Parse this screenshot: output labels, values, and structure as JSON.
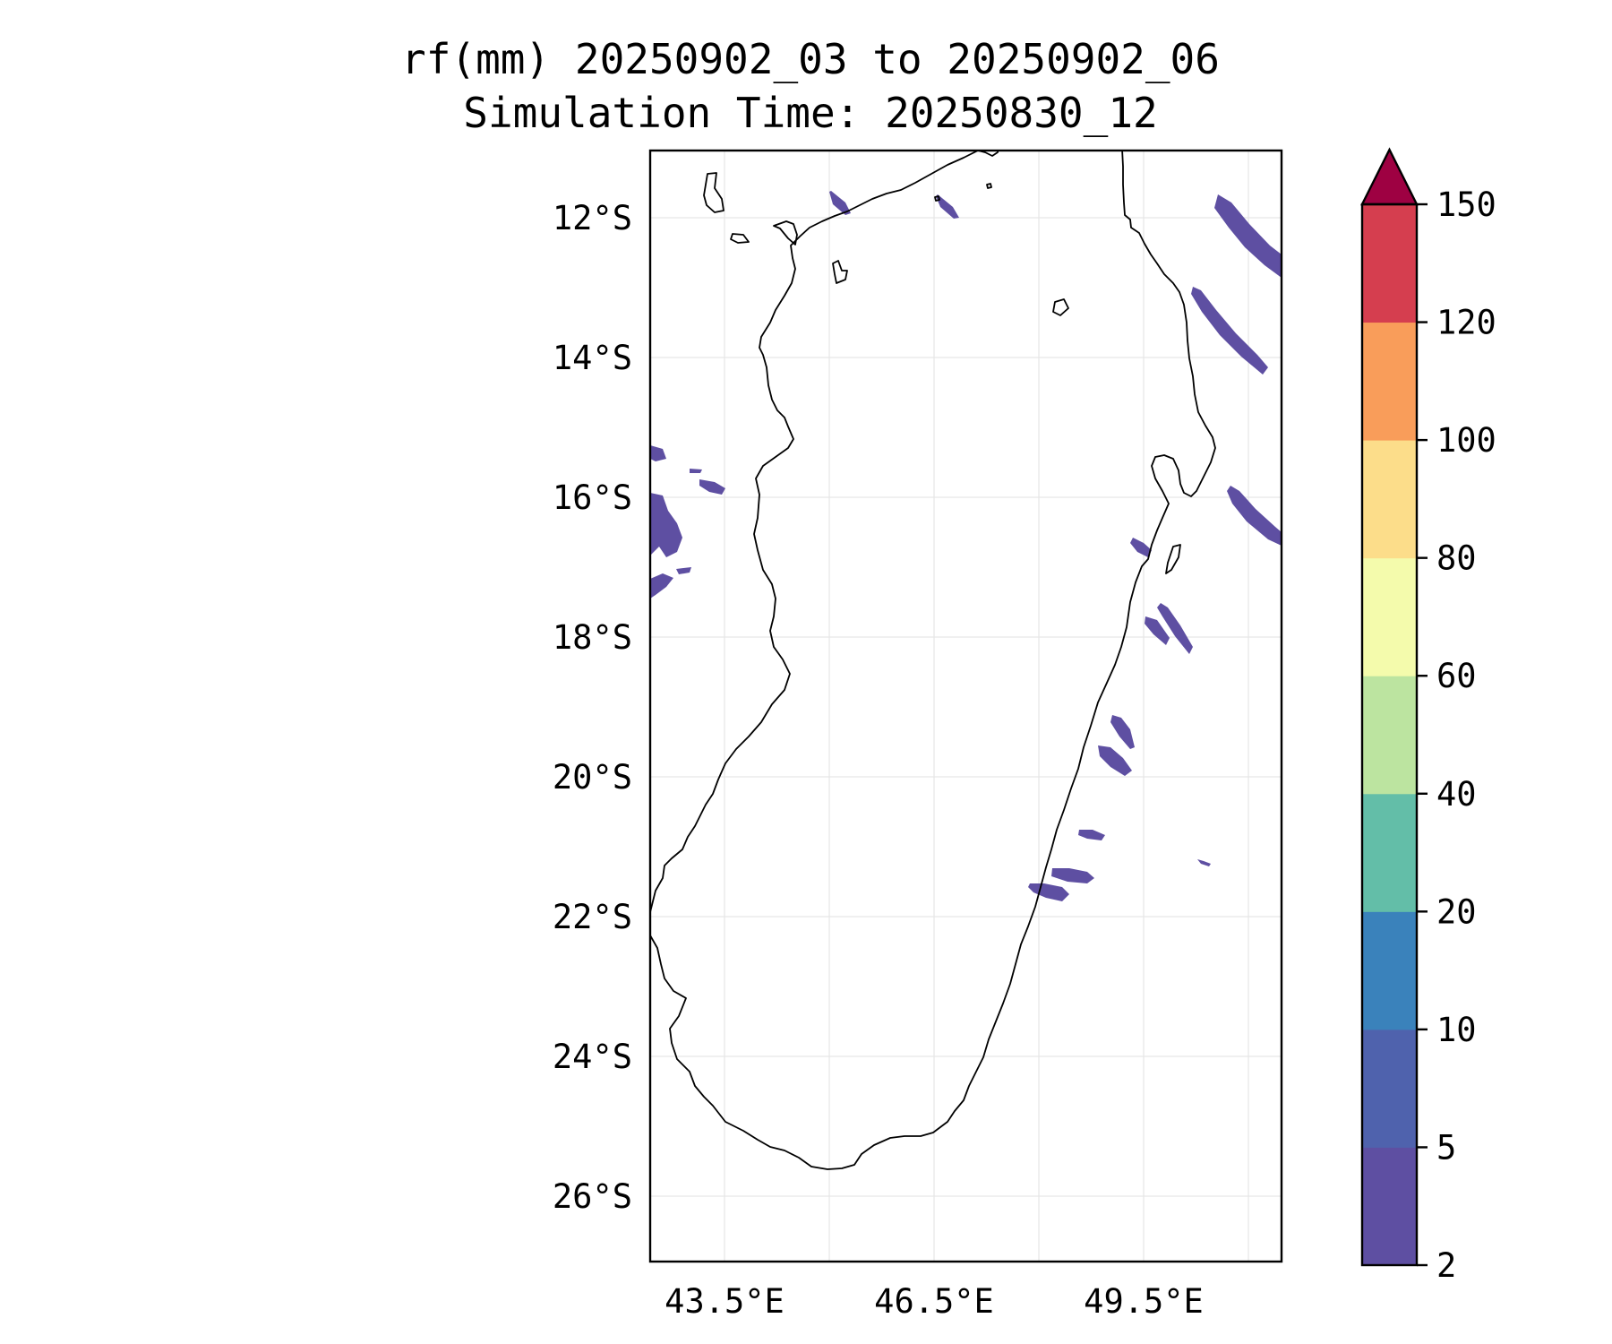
{
  "title": {
    "line1": "rf(mm) 20250902_03 to 20250902_06",
    "line2": "Simulation Time: 20250830_12"
  },
  "map": {
    "lat_ticks": [
      "12°S",
      "14°S",
      "16°S",
      "18°S",
      "20°S",
      "22°S",
      "24°S",
      "26°S"
    ],
    "lon_ticks": [
      "43.5°E",
      "46.5°E",
      "49.5°E"
    ],
    "lat_range": [
      -27.0,
      -11.1
    ],
    "lon_range": [
      42.45,
      51.45
    ],
    "grid": true,
    "coastline_color": "#000000",
    "rain_color": "#5e4fa2"
  },
  "colorbar": {
    "labels": [
      "2",
      "5",
      "10",
      "20",
      "40",
      "60",
      "80",
      "100",
      "120",
      "150"
    ],
    "colors": [
      "#5e4fa2",
      "#4f62ad",
      "#3a82bb",
      "#63bea8",
      "#bce4a0",
      "#f4fbac",
      "#fcdd8a",
      "#f99d5a",
      "#d53e4f"
    ],
    "extend_color": "#9e0142",
    "extend": "max",
    "placement": "right"
  }
}
